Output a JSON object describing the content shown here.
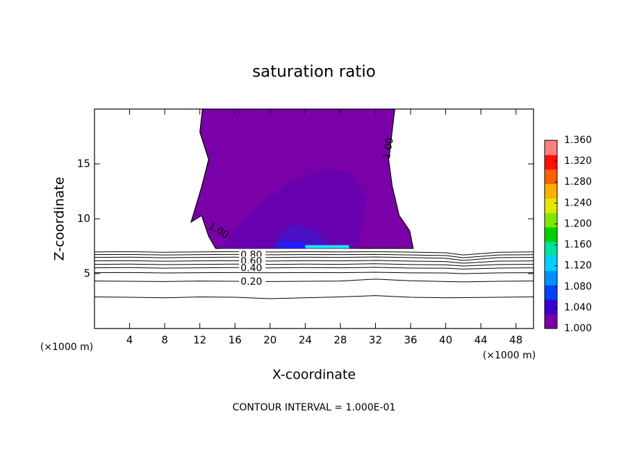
{
  "chart_data": {
    "type": "contour",
    "title": "saturation ratio",
    "xlabel": "X-coordinate",
    "ylabel": "Z-coordinate",
    "x_unit": "(×1000 m)",
    "footer": "CONTOUR INTERVAL = 1.000E-01",
    "xlim": [
      0,
      50
    ],
    "ylim": [
      0,
      20
    ],
    "xticks": [
      4,
      8,
      12,
      16,
      20,
      24,
      28,
      32,
      36,
      40,
      44,
      48
    ],
    "yticks": [
      5,
      10,
      15
    ],
    "regions": [
      {
        "color": "#7a00a8",
        "label": "1.00",
        "x": [
          12.3,
          12.0,
          13.0,
          12.2,
          11.0,
          12.2,
          13.0,
          13.8,
          24,
          30,
          36.3,
          35.9,
          34.7,
          33.9,
          33.5,
          33.8,
          34.2
        ],
        "z": [
          20,
          17.9,
          15.4,
          12.9,
          9.7,
          10.3,
          8.4,
          7.3,
          7.3,
          7.3,
          7.3,
          8.9,
          10.3,
          13,
          15.4,
          17.3,
          20
        ]
      },
      {
        "color": "#6800b0",
        "x": [
          14.5,
          16,
          19,
          22,
          26,
          29,
          31,
          30,
          25,
          20,
          16
        ],
        "z": [
          7.3,
          9,
          11.5,
          13.2,
          14.5,
          14.3,
          12,
          7.3,
          7.3,
          7.3,
          7.3
        ]
      },
      {
        "color": "#4a10c4",
        "x": [
          20,
          21,
          22.5,
          25,
          26.5,
          26,
          24
        ],
        "z": [
          7.3,
          8.5,
          9.5,
          9,
          8,
          7.3,
          7.3
        ]
      },
      {
        "color": "#2020ff",
        "x": [
          21,
          24,
          24,
          21
        ],
        "z": [
          7.3,
          7.3,
          7.9,
          7.9
        ]
      },
      {
        "color": "#20e0f0",
        "x": [
          24,
          29,
          29,
          24
        ],
        "z": [
          7.3,
          7.3,
          7.6,
          7.6
        ]
      }
    ],
    "contour_x": [
      0,
      4,
      8,
      12,
      16,
      20,
      24,
      28,
      32,
      36,
      40,
      42,
      46,
      50
    ],
    "contours": [
      {
        "z": [
          6.98,
          7.0,
          6.95,
          6.98,
          7.0,
          6.97,
          7.0,
          6.98,
          7.0,
          6.96,
          6.9,
          6.7,
          6.95,
          6.98
        ]
      },
      {
        "label": "0.80",
        "z": [
          6.73,
          6.75,
          6.7,
          6.73,
          6.75,
          6.72,
          6.74,
          6.73,
          6.76,
          6.7,
          6.65,
          6.45,
          6.7,
          6.73
        ]
      },
      {
        "z": [
          6.48,
          6.5,
          6.45,
          6.48,
          6.5,
          6.47,
          6.5,
          6.48,
          6.52,
          6.46,
          6.4,
          6.2,
          6.46,
          6.48
        ]
      },
      {
        "label": "0.60",
        "z": [
          6.16,
          6.18,
          6.13,
          6.16,
          6.18,
          6.15,
          6.18,
          6.16,
          6.2,
          6.14,
          6.1,
          5.95,
          6.14,
          6.16
        ]
      },
      {
        "z": [
          5.85,
          5.87,
          5.82,
          5.85,
          5.87,
          5.84,
          5.87,
          5.85,
          5.9,
          5.83,
          5.8,
          5.7,
          5.83,
          5.85
        ]
      },
      {
        "label": "0.40",
        "z": [
          5.53,
          5.55,
          5.5,
          5.53,
          5.55,
          5.52,
          5.55,
          5.53,
          5.58,
          5.51,
          5.5,
          5.42,
          5.51,
          5.53
        ]
      },
      {
        "z": [
          5.09,
          5.1,
          5.06,
          5.09,
          5.1,
          5.08,
          5.1,
          5.09,
          5.13,
          5.07,
          5.06,
          5.0,
          5.07,
          5.09
        ]
      },
      {
        "label": "0.20",
        "z": [
          4.33,
          4.3,
          4.28,
          4.33,
          4.3,
          4.28,
          4.3,
          4.33,
          4.5,
          4.35,
          4.28,
          4.25,
          4.3,
          4.33
        ]
      },
      {
        "z": [
          2.88,
          2.85,
          2.8,
          2.88,
          2.85,
          2.72,
          2.8,
          2.88,
          3.0,
          2.85,
          2.8,
          2.82,
          2.85,
          2.88
        ]
      }
    ],
    "colorbar": {
      "lim": [
        1.0,
        1.36
      ],
      "ticks": [
        {
          "value": 1.0,
          "label": "1.000"
        },
        {
          "value": 1.04,
          "label": "1.040"
        },
        {
          "value": 1.08,
          "label": "1.080"
        },
        {
          "value": 1.12,
          "label": "1.120"
        },
        {
          "value": 1.16,
          "label": "1.160"
        },
        {
          "value": 1.2,
          "label": "1.200"
        },
        {
          "value": 1.24,
          "label": "1.240"
        },
        {
          "value": 1.28,
          "label": "1.280"
        },
        {
          "value": 1.32,
          "label": "1.320"
        },
        {
          "value": 1.36,
          "label": "1.360"
        }
      ],
      "colors": [
        "#7800a8",
        "#3a00d0",
        "#0040ff",
        "#0090ff",
        "#00d0ff",
        "#00e0a0",
        "#00d000",
        "#80e800",
        "#e0e800",
        "#ffb000",
        "#ff6000",
        "#ff1000",
        "#ff8080"
      ]
    }
  }
}
